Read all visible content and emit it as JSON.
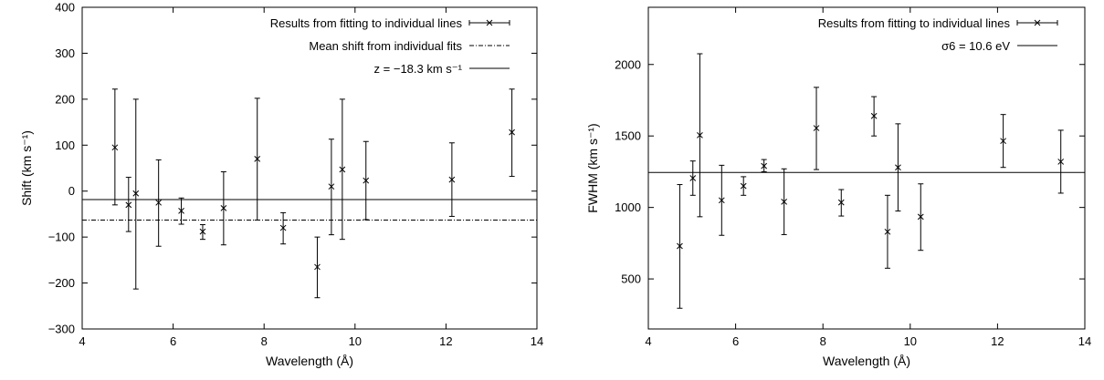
{
  "chart_data": [
    {
      "type": "scatter",
      "xlabel": "Wavelength (Å)",
      "ylabel": "Shift (km s⁻¹)",
      "xlim": [
        4,
        14
      ],
      "ylim": [
        -300,
        400
      ],
      "xticks": [
        "4",
        "6",
        "8",
        "10",
        "12",
        "14"
      ],
      "yticks": [
        "−300",
        "−200",
        "−100",
        "0",
        "100",
        "200",
        "300",
        "400"
      ],
      "grid": false,
      "legend_position": "top-right",
      "legend": [
        "Results from fitting to individual lines",
        "Mean shift from individual fits",
        "z = −18.3 km s⁻¹"
      ],
      "series": [
        {
          "name": "Results from fitting to individual lines",
          "style": "errorbar",
          "points": [
            {
              "x": 4.72,
              "y": 95,
              "lo": -30,
              "hi": 222
            },
            {
              "x": 5.02,
              "y": -30,
              "lo": -88,
              "hi": 30
            },
            {
              "x": 5.18,
              "y": -5,
              "lo": -213,
              "hi": 200
            },
            {
              "x": 5.68,
              "y": -25,
              "lo": -120,
              "hi": 68
            },
            {
              "x": 6.18,
              "y": -43,
              "lo": -72,
              "hi": -15
            },
            {
              "x": 6.65,
              "y": -88,
              "lo": -105,
              "hi": -73
            },
            {
              "x": 7.11,
              "y": -37,
              "lo": -117,
              "hi": 42
            },
            {
              "x": 7.85,
              "y": 70,
              "lo": -63,
              "hi": 202
            },
            {
              "x": 8.42,
              "y": -80,
              "lo": -115,
              "hi": -47
            },
            {
              "x": 9.17,
              "y": -165,
              "lo": -232,
              "hi": -100
            },
            {
              "x": 9.48,
              "y": 10,
              "lo": -95,
              "hi": 113
            },
            {
              "x": 9.72,
              "y": 47,
              "lo": -105,
              "hi": 200
            },
            {
              "x": 10.24,
              "y": 23,
              "lo": -62,
              "hi": 108
            },
            {
              "x": 12.13,
              "y": 25,
              "lo": -55,
              "hi": 105
            },
            {
              "x": 13.45,
              "y": 128,
              "lo": 32,
              "hi": 222
            }
          ]
        },
        {
          "name": "Mean shift from individual fits",
          "style": "dashdot",
          "hline": -63
        },
        {
          "name": "z = −18.3 km s⁻¹",
          "style": "solid",
          "hline": -18.3
        }
      ]
    },
    {
      "type": "scatter",
      "xlabel": "Wavelength (Å)",
      "ylabel": "FWHM (km s⁻¹)",
      "xlim": [
        4,
        14
      ],
      "ylim": [
        150,
        2400
      ],
      "xticks": [
        "4",
        "6",
        "8",
        "10",
        "12",
        "14"
      ],
      "yticks": [
        "500",
        "1000",
        "1500",
        "2000"
      ],
      "grid": false,
      "legend_position": "top-right",
      "legend": [
        "Results from fitting to individual lines",
        "σ6 = 10.6 eV"
      ],
      "series": [
        {
          "name": "Results from fitting to individual lines",
          "style": "errorbar",
          "points": [
            {
              "x": 4.72,
              "y": 730,
              "lo": 295,
              "hi": 1160
            },
            {
              "x": 5.02,
              "y": 1205,
              "lo": 1085,
              "hi": 1325
            },
            {
              "x": 5.18,
              "y": 1505,
              "lo": 935,
              "hi": 2075
            },
            {
              "x": 5.68,
              "y": 1050,
              "lo": 805,
              "hi": 1295
            },
            {
              "x": 6.18,
              "y": 1150,
              "lo": 1085,
              "hi": 1215
            },
            {
              "x": 6.65,
              "y": 1290,
              "lo": 1250,
              "hi": 1335
            },
            {
              "x": 7.11,
              "y": 1040,
              "lo": 810,
              "hi": 1270
            },
            {
              "x": 7.85,
              "y": 1555,
              "lo": 1265,
              "hi": 1840
            },
            {
              "x": 8.42,
              "y": 1035,
              "lo": 940,
              "hi": 1125
            },
            {
              "x": 9.17,
              "y": 1640,
              "lo": 1500,
              "hi": 1775
            },
            {
              "x": 9.48,
              "y": 830,
              "lo": 575,
              "hi": 1085
            },
            {
              "x": 9.72,
              "y": 1280,
              "lo": 975,
              "hi": 1585
            },
            {
              "x": 10.24,
              "y": 935,
              "lo": 700,
              "hi": 1165
            },
            {
              "x": 12.13,
              "y": 1465,
              "lo": 1280,
              "hi": 1650
            },
            {
              "x": 13.45,
              "y": 1320,
              "lo": 1100,
              "hi": 1540
            }
          ]
        },
        {
          "name": "σ6 = 10.6 eV",
          "style": "solid",
          "hline": 1245
        }
      ]
    }
  ]
}
